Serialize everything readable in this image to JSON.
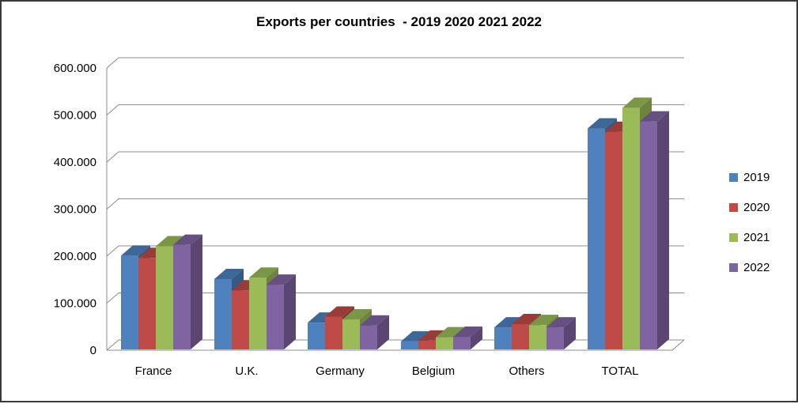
{
  "frame": {
    "background": "#ffffff",
    "border_color": "#3a3a3a"
  },
  "chart_data": {
    "type": "bar",
    "style": "3d-clustered-column",
    "title": "Exports per countries  - 2019 2020 2021 2022",
    "categories": [
      "France",
      "U.K.",
      "Germany",
      "Belgium",
      "Others",
      "TOTAL"
    ],
    "series": [
      {
        "name": "2019",
        "color": "#4E81BD",
        "values": [
          200000,
          150000,
          57000,
          17000,
          47000,
          471000
        ]
      },
      {
        "name": "2020",
        "color": "#BE4B48",
        "values": [
          195000,
          126000,
          70000,
          19000,
          54000,
          464000
        ]
      },
      {
        "name": "2021",
        "color": "#9BBB59",
        "values": [
          220000,
          153000,
          64000,
          26000,
          52000,
          515000
        ]
      },
      {
        "name": "2022",
        "color": "#8064A2",
        "values": [
          223000,
          138000,
          51000,
          27000,
          47000,
          486000
        ]
      }
    ],
    "xlabel": "",
    "ylabel": "",
    "ylim": [
      0,
      600000
    ],
    "ytick_step": 100000,
    "ytick_labels": [
      "0",
      "100.000",
      "200.000",
      "300.000",
      "400.000",
      "500.000",
      "600.000"
    ],
    "grid": true,
    "legend_position": "right",
    "legend_entries": [
      "2019",
      "2020",
      "2021",
      "2022"
    ],
    "gridline_color": "#8C8C8C",
    "text_color": "#000000"
  }
}
